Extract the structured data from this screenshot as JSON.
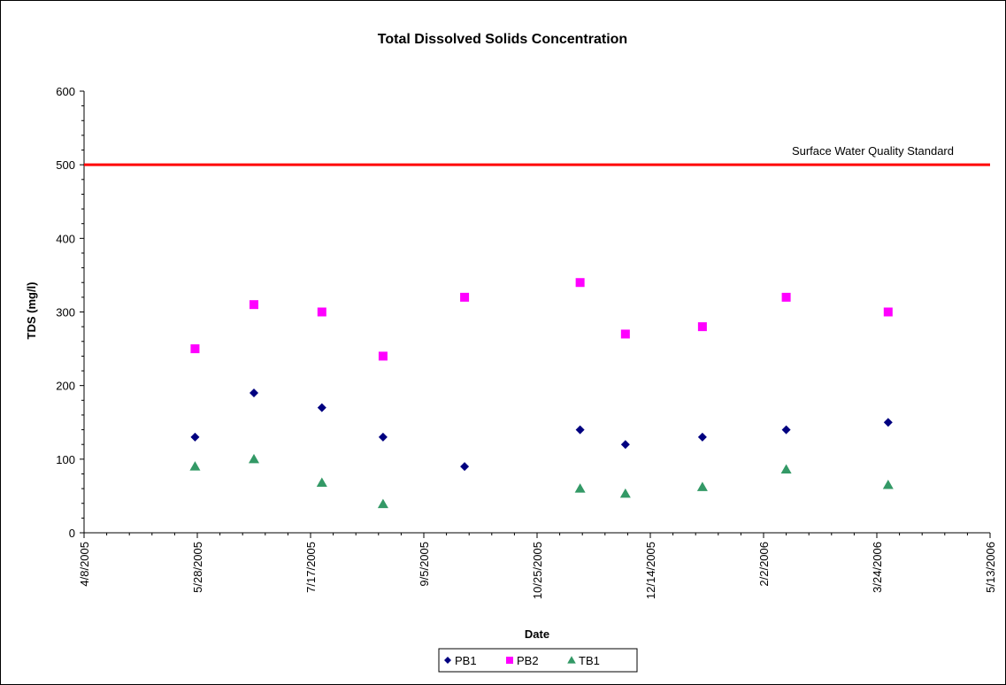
{
  "chart_data": {
    "type": "scatter",
    "title": "Total Dissolved Solids Concentration",
    "xlabel": "Date",
    "ylabel": "TDS (mg/l)",
    "xlim": [
      "4/8/2005",
      "5/13/2006"
    ],
    "ylim": [
      0,
      600
    ],
    "x_tick_labels": [
      "4/8/2005",
      "5/28/2005",
      "7/17/2005",
      "9/5/2005",
      "10/25/2005",
      "12/14/2005",
      "2/2/2006",
      "3/24/2006",
      "5/13/2006"
    ],
    "y_tick_labels": [
      "0",
      "100",
      "200",
      "300",
      "400",
      "500",
      "600"
    ],
    "grid": false,
    "legend_position": "bottom",
    "reference_line": {
      "label": "Surface Water Quality Standard",
      "value": 500,
      "color": "#ff0000"
    },
    "series": [
      {
        "name": "PB1",
        "marker": "diamond",
        "color": "#000080",
        "points": [
          {
            "x": "5/27/2005",
            "y": 130
          },
          {
            "x": "6/22/2005",
            "y": 190
          },
          {
            "x": "7/22/2005",
            "y": 170
          },
          {
            "x": "8/18/2005",
            "y": 130
          },
          {
            "x": "9/23/2005",
            "y": 90
          },
          {
            "x": "11/13/2005",
            "y": 140
          },
          {
            "x": "12/3/2005",
            "y": 120
          },
          {
            "x": "1/6/2006",
            "y": 130
          },
          {
            "x": "2/12/2006",
            "y": 140
          },
          {
            "x": "3/29/2006",
            "y": 150
          }
        ]
      },
      {
        "name": "PB2",
        "marker": "square",
        "color": "#ff00ff",
        "points": [
          {
            "x": "5/27/2005",
            "y": 250
          },
          {
            "x": "6/22/2005",
            "y": 310
          },
          {
            "x": "7/22/2005",
            "y": 300
          },
          {
            "x": "8/18/2005",
            "y": 240
          },
          {
            "x": "9/23/2005",
            "y": 320
          },
          {
            "x": "11/13/2005",
            "y": 340
          },
          {
            "x": "12/3/2005",
            "y": 270
          },
          {
            "x": "1/6/2006",
            "y": 280
          },
          {
            "x": "2/12/2006",
            "y": 320
          },
          {
            "x": "3/29/2006",
            "y": 300
          }
        ]
      },
      {
        "name": "TB1",
        "marker": "triangle",
        "color": "#339966",
        "points": [
          {
            "x": "5/27/2005",
            "y": 90
          },
          {
            "x": "6/22/2005",
            "y": 100
          },
          {
            "x": "7/22/2005",
            "y": 68
          },
          {
            "x": "8/18/2005",
            "y": 39
          },
          {
            "x": "11/13/2005",
            "y": 60
          },
          {
            "x": "12/3/2005",
            "y": 53
          },
          {
            "x": "1/6/2006",
            "y": 62
          },
          {
            "x": "2/12/2006",
            "y": 86
          },
          {
            "x": "3/29/2006",
            "y": 65
          }
        ]
      }
    ]
  }
}
